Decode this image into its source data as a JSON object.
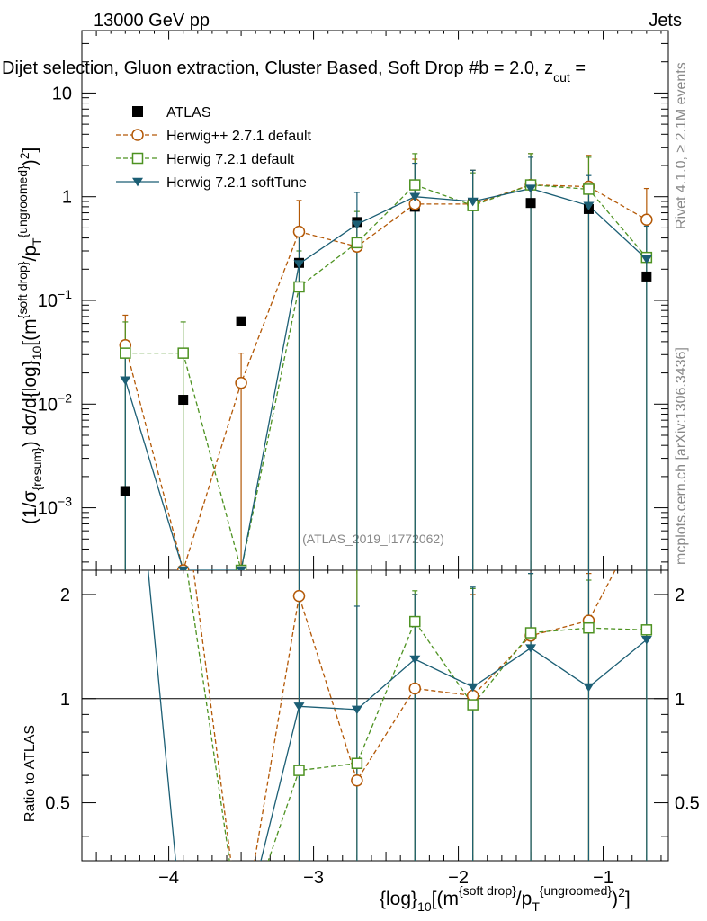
{
  "header": {
    "left": "13000 GeV pp",
    "right": "Jets",
    "title": "Dijet selection, Gluon extraction, Cluster Based, Soft Drop #b = 2.0, z",
    "title_sub": "cut",
    "title_tail": " ="
  },
  "side": {
    "rivet": "Rivet 4.1.0, ≥ 2.1M events",
    "mcplots": "mcplots.cern.ch [arXiv:1306.3436]"
  },
  "watermark": "(ATLAS_2019_I1772062)",
  "axes": {
    "ylabel_main": "(1/σ{resum}) dσ/d{log}10[(m{soft drop}/pT{ungroomed})2]",
    "ylabel_ratio": "Ratio to ATLAS",
    "xlabel": "{log}10[(m{soft drop}/pT{ungroomed})2]"
  },
  "legend": [
    {
      "key": "atlas",
      "label": "ATLAS"
    },
    {
      "key": "hpp",
      "label": "Herwig++ 2.7.1 default"
    },
    {
      "key": "h7",
      "label": "Herwig 7.2.1 default"
    },
    {
      "key": "h7s",
      "label": "Herwig 7.2.1 softTune"
    }
  ],
  "chart_data": {
    "type": "line",
    "xlim": [
      -4.6,
      -0.55
    ],
    "ylim_main": [
      0.00025,
      40
    ],
    "ylim_ratio": [
      0.34,
      2.35
    ],
    "xticks": [
      -4,
      -3,
      -2,
      -1
    ],
    "xtick_labels": [
      "−4",
      "−3",
      "−2",
      "−1"
    ],
    "yticks_main": [
      0.001,
      0.01,
      0.1,
      1,
      10
    ],
    "ytick_main_labels": [
      {
        "base": "10",
        "exp": "−3"
      },
      {
        "base": "10",
        "exp": "−2"
      },
      {
        "base": "10",
        "exp": "−1"
      },
      {
        "base": "1",
        "exp": ""
      },
      {
        "base": "10",
        "exp": ""
      }
    ],
    "yticks_ratio": [
      0.5,
      1,
      2
    ],
    "ytick_ratio_labels": [
      "0.5",
      "1",
      "2"
    ],
    "x": [
      -4.3,
      -3.9,
      -3.5,
      -3.1,
      -2.7,
      -2.3,
      -1.9,
      -1.5,
      -1.1,
      -0.7
    ],
    "series": [
      {
        "key": "atlas",
        "name": "ATLAS",
        "color": "#000000",
        "marker": "square-filled",
        "line": "none",
        "values": [
          0.00145,
          0.011,
          0.063,
          0.23,
          0.57,
          0.8,
          0.87,
          0.87,
          0.76,
          0.17
        ]
      },
      {
        "key": "hpp",
        "name": "Herwig++ 2.7.1 default",
        "color": "#b35806",
        "marker": "circle-open",
        "line": "dashed",
        "values": [
          0.037,
          0.00025,
          0.016,
          0.46,
          0.33,
          0.85,
          0.85,
          1.3,
          1.25,
          0.6
        ],
        "err_hi": [
          0.072,
          null,
          0.031,
          0.92,
          0.62,
          2.3,
          1.8,
          2.6,
          2.5,
          1.2
        ]
      },
      {
        "key": "h7",
        "name": "Herwig 7.2.1 default",
        "color": "#4d9221",
        "marker": "square-open",
        "line": "dashed",
        "values": [
          0.031,
          0.031,
          0.00025,
          0.135,
          0.36,
          1.3,
          0.82,
          1.3,
          1.18,
          0.26
        ],
        "err_hi": [
          0.062,
          0.062,
          null,
          0.3,
          0.72,
          2.6,
          1.7,
          2.6,
          2.4,
          0.55
        ]
      },
      {
        "key": "h7s",
        "name": "Herwig 7.2.1 softTune",
        "color": "#1b5e74",
        "marker": "triangle-down-filled",
        "line": "solid",
        "values": [
          0.017,
          0.00025,
          0.00025,
          0.225,
          0.54,
          1.0,
          0.9,
          1.2,
          0.82,
          0.25
        ],
        "err_hi": [
          0.034,
          null,
          null,
          0.5,
          1.1,
          2.1,
          1.8,
          2.4,
          1.6,
          0.52
        ]
      }
    ],
    "ratio_series": [
      {
        "key": "hpp",
        "values": [
          25,
          4,
          0.2,
          1.98,
          0.58,
          1.07,
          1.02,
          1.52,
          1.68,
          3.5
        ],
        "err_hi": [
          null,
          null,
          null,
          2.6,
          null,
          2.0,
          2.0,
          2.3,
          2.3,
          null
        ]
      },
      {
        "key": "h7",
        "values": [
          21,
          2.8,
          0.2,
          0.62,
          0.65,
          1.67,
          0.96,
          1.55,
          1.6,
          1.58
        ],
        "err_hi": [
          null,
          null,
          null,
          null,
          null,
          2.05,
          2.08,
          2.3,
          2.2,
          null
        ]
      },
      {
        "key": "h7s",
        "values": [
          11.7,
          0.2,
          0.2,
          0.95,
          0.93,
          1.3,
          1.08,
          1.4,
          1.08,
          1.48
        ],
        "err_hi": [
          null,
          null,
          null,
          null,
          1.85,
          2.0,
          2.1,
          2.3,
          null,
          null
        ]
      }
    ]
  }
}
